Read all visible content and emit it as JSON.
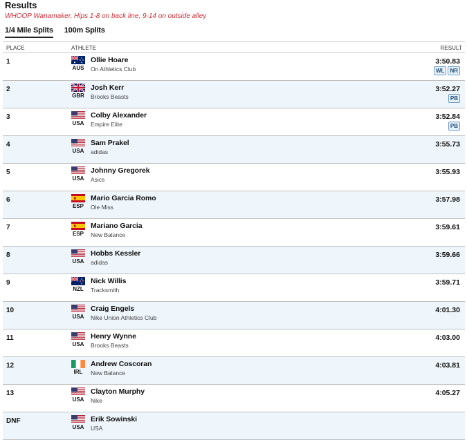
{
  "page": {
    "title": "Results",
    "subtitle": "WHOOP Wanamaker, Hips 1-8 on back line, 9-14 on outside alley"
  },
  "tabs": [
    {
      "label": "1/4 Mile Splits",
      "active": true
    },
    {
      "label": "100m Splits",
      "active": false
    }
  ],
  "table": {
    "headers": {
      "place": "PLACE",
      "athlete": "ATHLETE",
      "result": "RESULT"
    },
    "rows": [
      {
        "place": "1",
        "country": "AUS",
        "flag": "aus-flag-icon",
        "name": "Ollie Hoare",
        "team": "On Athletics Club",
        "result": "3:50.83",
        "badges": [
          "WL",
          "NR"
        ]
      },
      {
        "place": "2",
        "country": "GBR",
        "flag": "gbr-flag-icon",
        "name": "Josh Kerr",
        "team": "Brooks Beasts",
        "result": "3:52.27",
        "badges": [
          "PB"
        ]
      },
      {
        "place": "3",
        "country": "USA",
        "flag": "usa-flag-icon",
        "name": "Colby Alexander",
        "team": "Empire Elite",
        "result": "3:52.84",
        "badges": [
          "PB"
        ]
      },
      {
        "place": "4",
        "country": "USA",
        "flag": "usa-flag-icon",
        "name": "Sam Prakel",
        "team": "adidas",
        "result": "3:55.73",
        "badges": []
      },
      {
        "place": "5",
        "country": "USA",
        "flag": "usa-flag-icon",
        "name": "Johnny Gregorek",
        "team": "Asics",
        "result": "3:55.93",
        "badges": []
      },
      {
        "place": "6",
        "country": "ESP",
        "flag": "esp-flag-icon",
        "name": "Mario Garcia Romo",
        "team": "Ole Miss",
        "result": "3:57.98",
        "badges": []
      },
      {
        "place": "7",
        "country": "ESP",
        "flag": "esp-flag-icon",
        "name": "Mariano Garcia",
        "team": "New Balance",
        "result": "3:59.61",
        "badges": []
      },
      {
        "place": "8",
        "country": "USA",
        "flag": "usa-flag-icon",
        "name": "Hobbs Kessler",
        "team": "adidas",
        "result": "3:59.66",
        "badges": []
      },
      {
        "place": "9",
        "country": "NZL",
        "flag": "nzl-flag-icon",
        "name": "Nick Willis",
        "team": "Tracksmith",
        "result": "3:59.71",
        "badges": []
      },
      {
        "place": "10",
        "country": "USA",
        "flag": "usa-flag-icon",
        "name": "Craig Engels",
        "team": "Nike Union Athletics Club",
        "result": "4:01.30",
        "badges": []
      },
      {
        "place": "11",
        "country": "USA",
        "flag": "usa-flag-icon",
        "name": "Henry Wynne",
        "team": "Brooks Beasts",
        "result": "4:03.00",
        "badges": []
      },
      {
        "place": "12",
        "country": "IRL",
        "flag": "irl-flag-icon",
        "name": "Andrew Coscoran",
        "team": "New Balance",
        "result": "4:03.81",
        "badges": []
      },
      {
        "place": "13",
        "country": "USA",
        "flag": "usa-flag-icon",
        "name": "Clayton Murphy",
        "team": "Nike",
        "result": "4:05.27",
        "badges": []
      },
      {
        "place": "DNF",
        "country": "USA",
        "flag": "usa-flag-icon",
        "name": "Erik Sowinski",
        "team": "USA",
        "result": "",
        "badges": []
      }
    ]
  }
}
